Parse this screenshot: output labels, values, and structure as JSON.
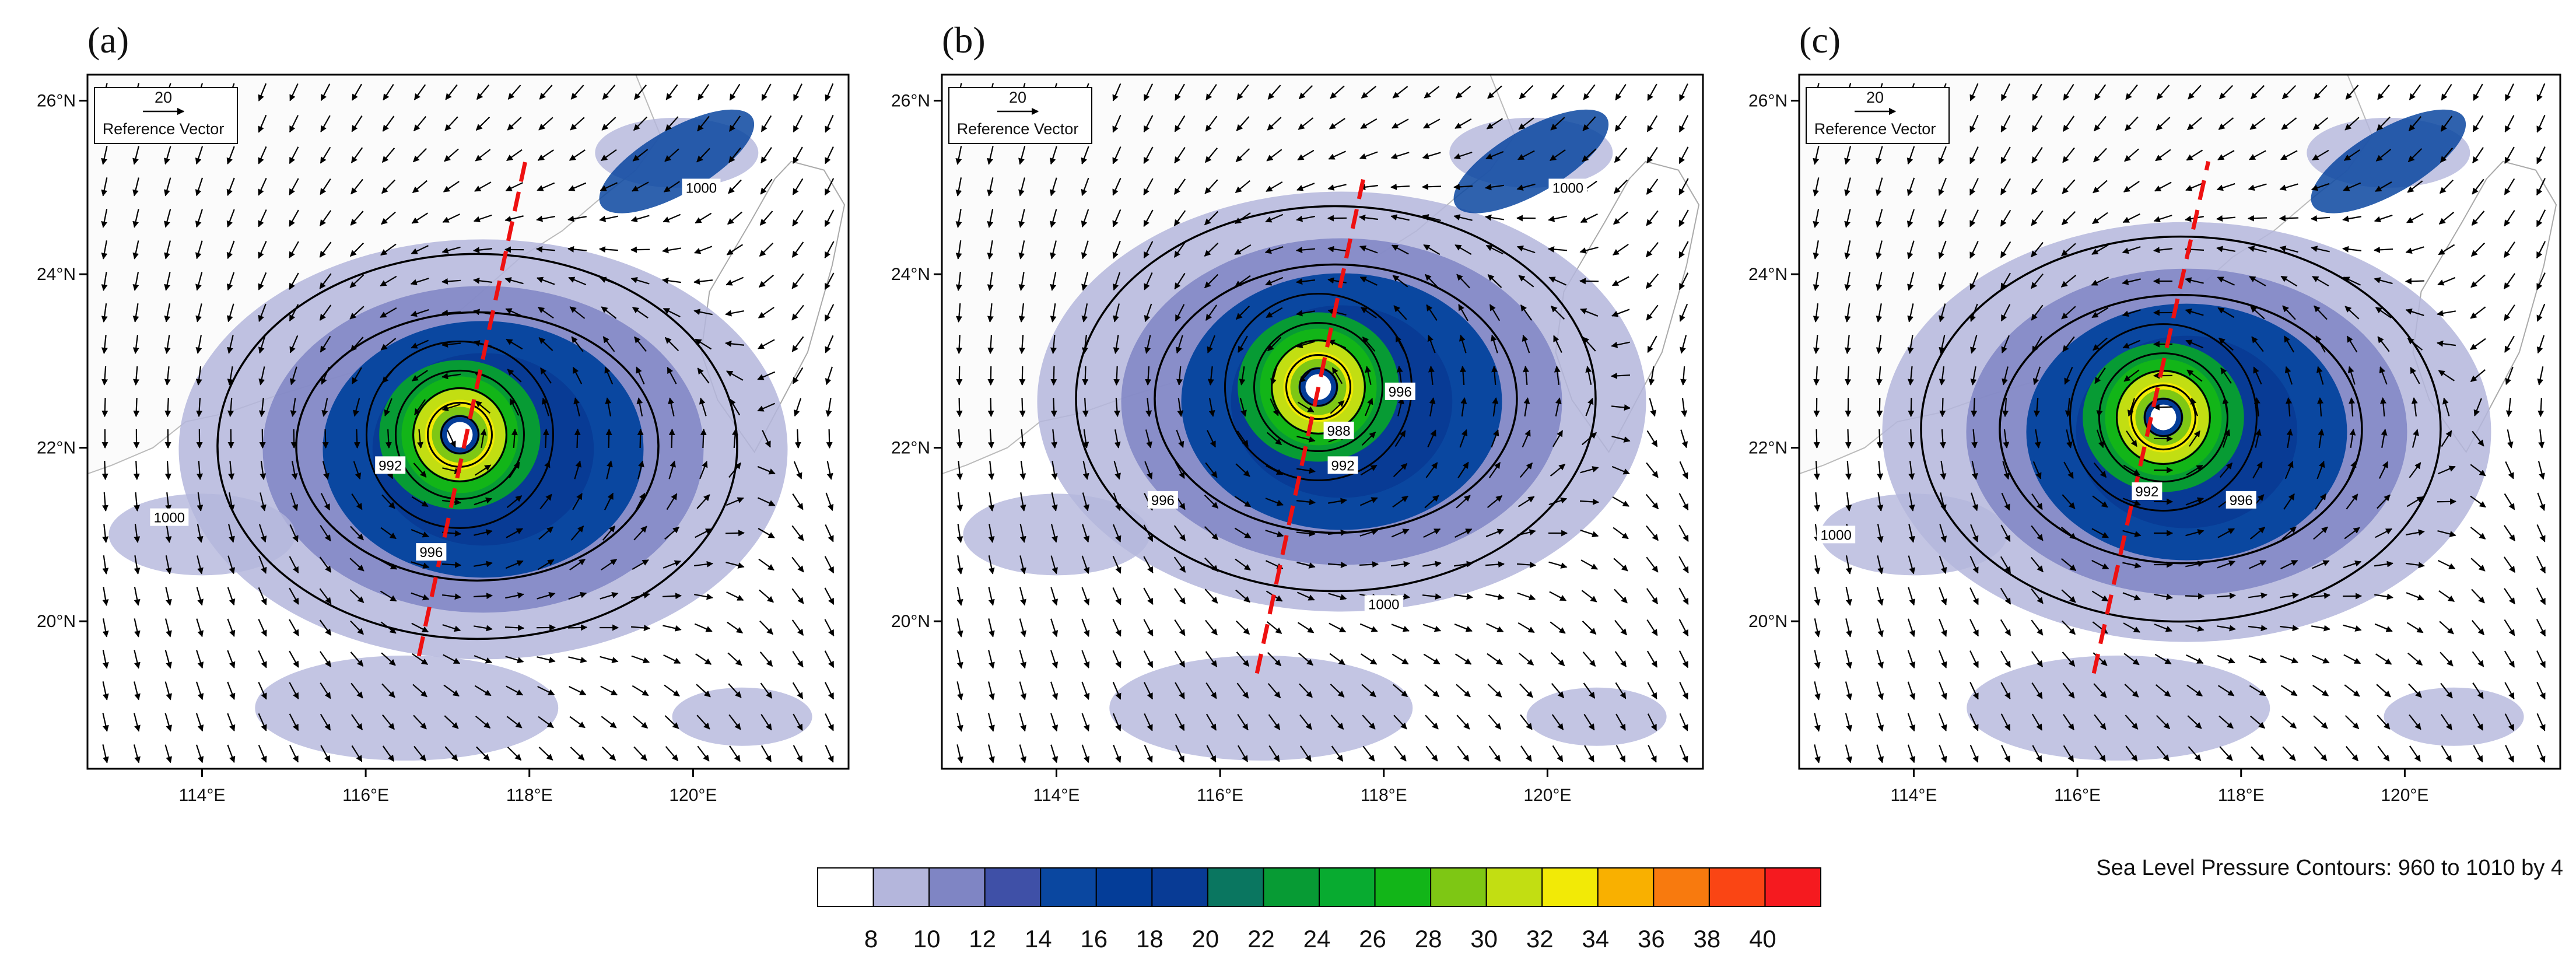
{
  "panels": [
    {
      "label": "(a)",
      "reference_vector": {
        "value": "20",
        "text": "Reference Vector"
      },
      "center_lon": 117.15,
      "center_lat": 22.15,
      "track_line": {
        "lon1": 116.65,
        "lat1": 19.6,
        "lon2": 117.95,
        "lat2": 25.3
      },
      "contour_labels": [
        "1000",
        "992",
        "996",
        "1000"
      ],
      "contour_label_positions": [
        {
          "lon": 120.1,
          "lat": 25.0
        },
        {
          "lon": 116.3,
          "lat": 21.8
        },
        {
          "lon": 116.8,
          "lat": 20.8
        },
        {
          "lon": 113.6,
          "lat": 21.2
        }
      ]
    },
    {
      "label": "(b)",
      "reference_vector": {
        "value": "20",
        "text": "Reference Vector"
      },
      "center_lon": 117.2,
      "center_lat": 22.7,
      "track_line": {
        "lon1": 116.45,
        "lat1": 19.4,
        "lon2": 117.75,
        "lat2": 25.1
      },
      "contour_labels": [
        "1000",
        "996",
        "988",
        "992",
        "996",
        "1000"
      ],
      "contour_label_positions": [
        {
          "lon": 120.25,
          "lat": 25.0
        },
        {
          "lon": 118.2,
          "lat": 22.65
        },
        {
          "lon": 117.45,
          "lat": 22.2
        },
        {
          "lon": 117.5,
          "lat": 21.8
        },
        {
          "lon": 115.3,
          "lat": 21.4
        },
        {
          "lon": 118.0,
          "lat": 20.2
        }
      ]
    },
    {
      "label": "(c)",
      "reference_vector": {
        "value": "20",
        "text": "Reference Vector"
      },
      "center_lon": 117.05,
      "center_lat": 22.35,
      "track_line": {
        "lon1": 116.2,
        "lat1": 19.4,
        "lon2": 117.6,
        "lat2": 25.3
      },
      "contour_labels": [
        "992",
        "996",
        "1000"
      ],
      "contour_label_positions": [
        {
          "lon": 116.85,
          "lat": 21.5
        },
        {
          "lon": 118.0,
          "lat": 21.4
        },
        {
          "lon": 113.05,
          "lat": 21.0
        }
      ]
    }
  ],
  "axes": {
    "lon_range": [
      112.6,
      121.9
    ],
    "lat_range": [
      18.3,
      26.3
    ],
    "lon_ticks": [
      "114°E",
      "116°E",
      "118°E",
      "120°E"
    ],
    "lon_tick_values": [
      114,
      116,
      118,
      120
    ],
    "lat_ticks": [
      "20°N",
      "22°N",
      "24°N",
      "26°N"
    ],
    "lat_tick_values": [
      20,
      22,
      24,
      26
    ]
  },
  "colorbar": {
    "labels": [
      "8",
      "10",
      "12",
      "14",
      "16",
      "18",
      "20",
      "22",
      "24",
      "26",
      "28",
      "30",
      "32",
      "34",
      "36",
      "38",
      "40"
    ],
    "colors": [
      "#ffffff",
      "#b4b6dc",
      "#7f85c4",
      "#3f50a7",
      "#0a47a0",
      "#043d98",
      "#083b95",
      "#0a7660",
      "#079b34",
      "#08ab30",
      "#12b518",
      "#7ec714",
      "#c2de12",
      "#f2ea06",
      "#f9b000",
      "#f87a0e",
      "#fa4514",
      "#f51a1f"
    ]
  },
  "contour_note": "Sea Level Pressure Contours: 960 to 1010 by 4"
}
